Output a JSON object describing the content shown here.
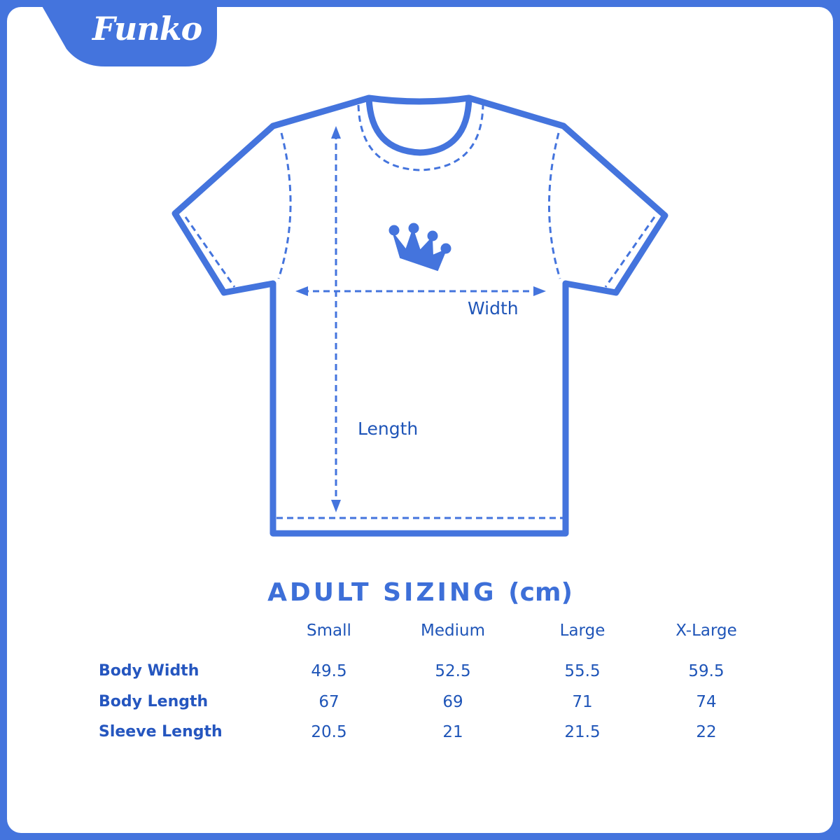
{
  "brand": {
    "logo_text": "Funko",
    "color_border": "#4474dd",
    "color_text": "#1f55b8"
  },
  "diagram": {
    "width_label": "Width",
    "length_label": "Length"
  },
  "sizing": {
    "title": "ADULT SIZING",
    "unit": "(cm)",
    "columns": [
      "Small",
      "Medium",
      "Large",
      "X-Large"
    ],
    "rows": [
      {
        "label": "Body Width",
        "values": [
          "49.5",
          "52.5",
          "55.5",
          "59.5"
        ]
      },
      {
        "label": "Body Length",
        "values": [
          "67",
          "69",
          "71",
          "74"
        ]
      },
      {
        "label": "Sleeve Length",
        "values": [
          "20.5",
          "21",
          "21.5",
          "22"
        ]
      }
    ]
  }
}
